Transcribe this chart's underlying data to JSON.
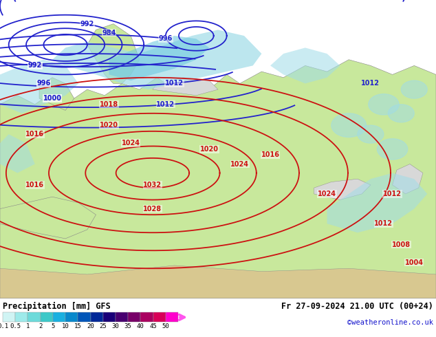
{
  "title_left": "Precipitation [mm] GFS",
  "title_right_line1": "Fr 27-09-2024 21.00 UTC (00+24)",
  "title_right_line2": "©weatheronline.co.uk",
  "colorbar_values": [
    "0.1",
    "0.5",
    "1",
    "2",
    "5",
    "10",
    "15",
    "20",
    "25",
    "30",
    "35",
    "40",
    "45",
    "50"
  ],
  "colorbar_colors": [
    "#d0f4f4",
    "#9eeaea",
    "#6ddada",
    "#3dc8c8",
    "#1ab0e0",
    "#0888cc",
    "#0055b8",
    "#002898",
    "#1a0078",
    "#480070",
    "#780068",
    "#aa0060",
    "#d80058",
    "#ff00cc",
    "#ff55ee"
  ],
  "bg_color": "#ffffff",
  "land_color": "#c8e89c",
  "sea_color": "#d8d8d8",
  "precip_light": "#a0dce8",
  "precip_med": "#70c8e0",
  "isobar_blue": "#2222cc",
  "isobar_red": "#cc1111",
  "border_color": "#888888",
  "font_family": "DejaVu Sans"
}
